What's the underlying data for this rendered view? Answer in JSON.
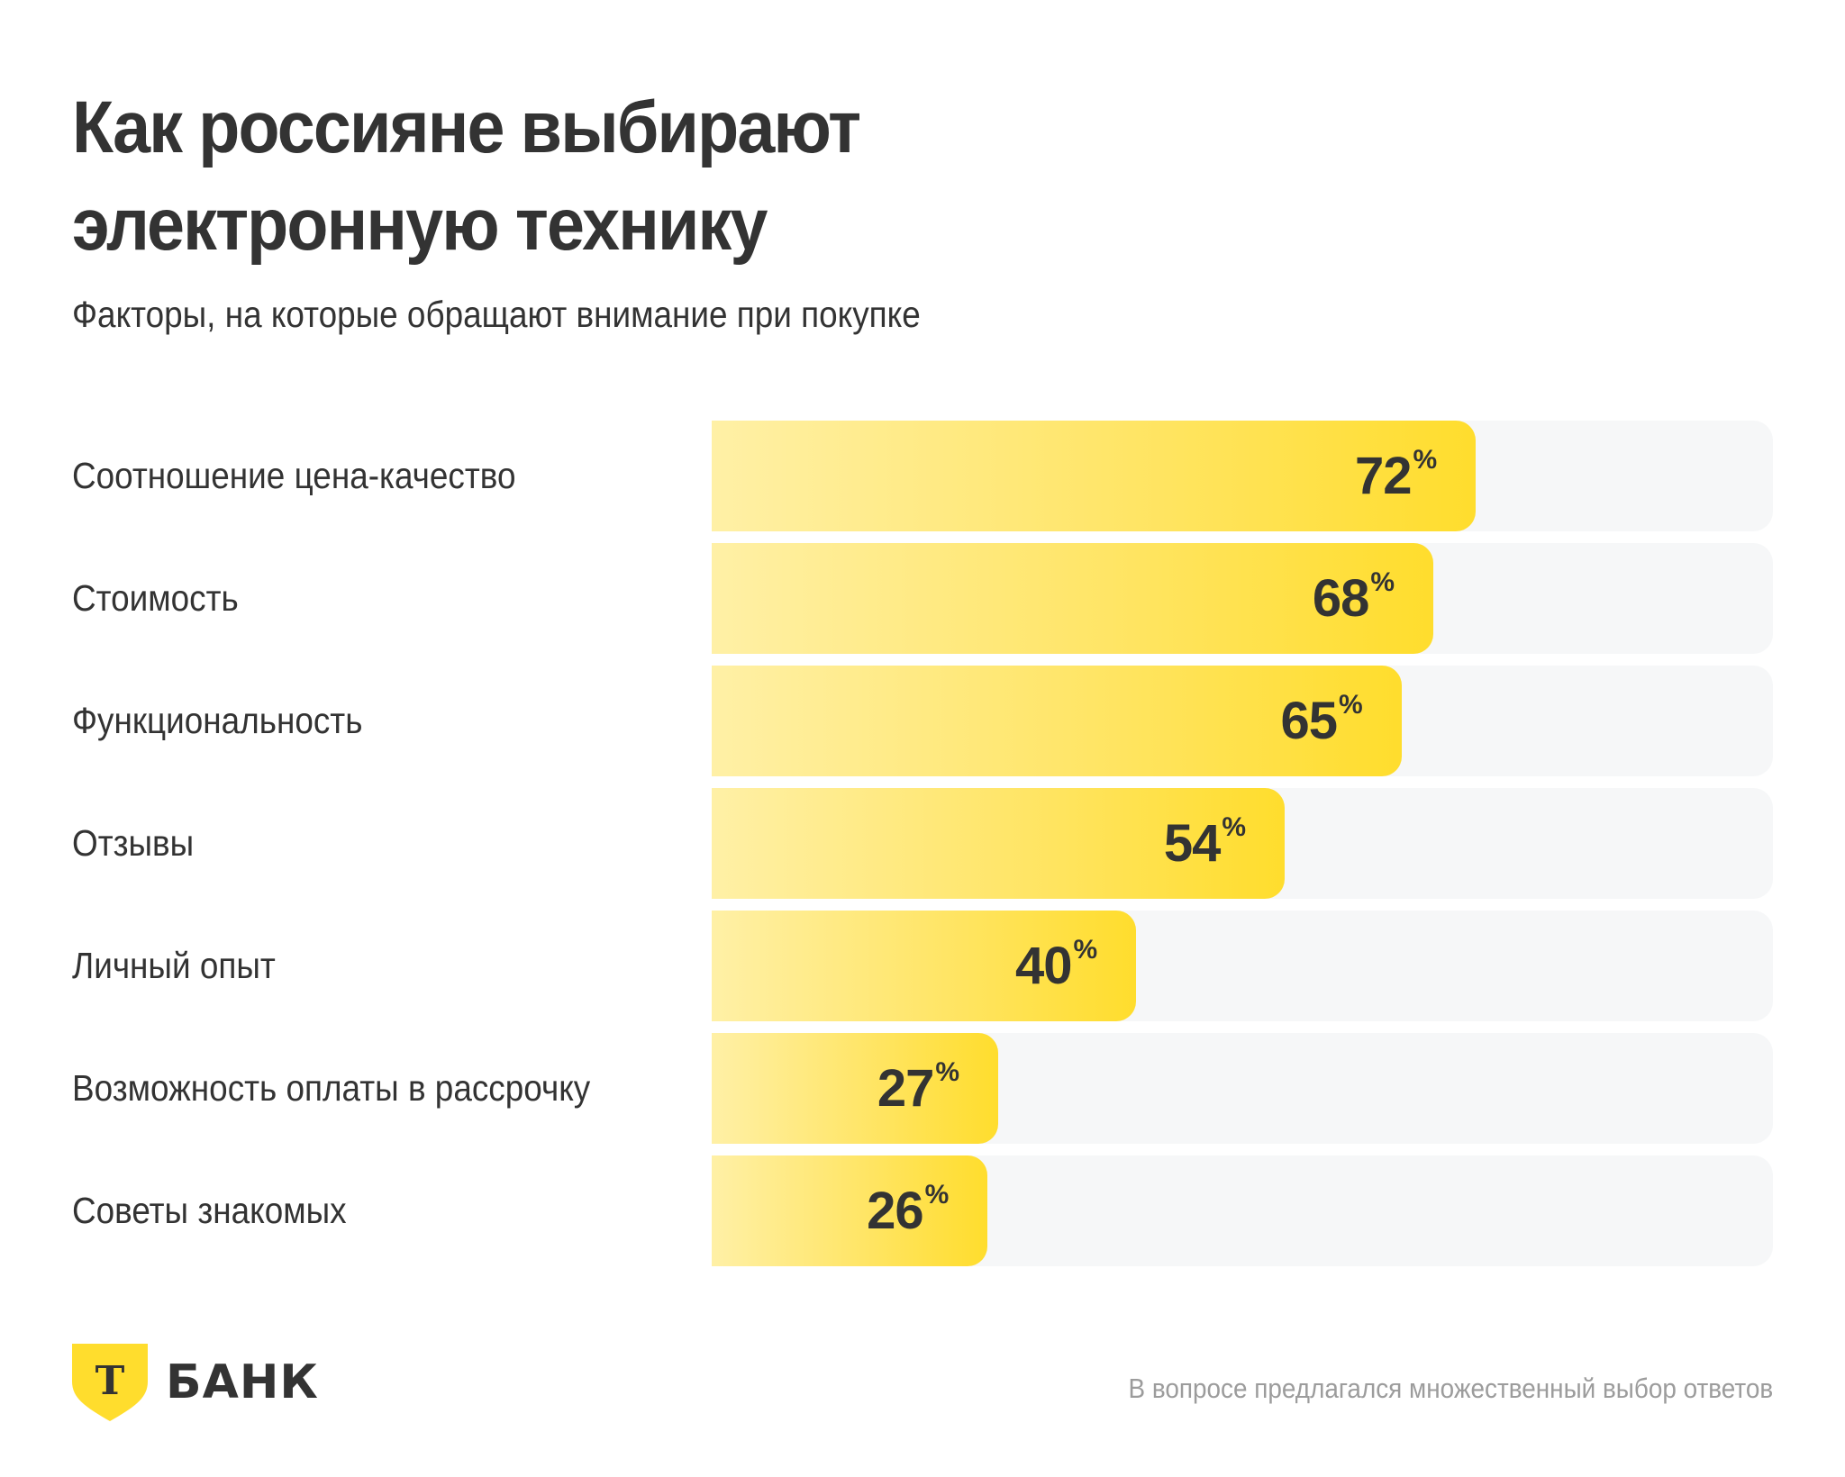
{
  "header": {
    "title_lines": [
      "Как россияне выбирают",
      "электронную технику"
    ],
    "subtitle": "Факторы, на которые обращают внимание при покупке"
  },
  "chart_data": {
    "type": "bar",
    "orientation": "horizontal",
    "title": "Как россияне выбирают электронную технику",
    "subtitle": "Факторы, на которые обращают внимание при покупке",
    "categories": [
      "Соотношение цена-качество",
      "Стоимость",
      "Функциональность",
      "Отзывы",
      "Личный опыт",
      "Возможность оплаты в рассрочку",
      "Советы знакомых"
    ],
    "values": [
      72,
      68,
      65,
      54,
      40,
      27,
      26
    ],
    "unit": "%",
    "xlim": [
      0,
      100
    ],
    "xlabel": "",
    "ylabel": "",
    "grid": false,
    "legend": "none",
    "colors": {
      "bar_start": "#FFF0A6",
      "bar_end": "#FFDD2D",
      "track": "#F6F7F8",
      "text": "#333333"
    }
  },
  "footer": {
    "brand_letter": "Т",
    "brand_name": "БАНК",
    "brand_color": "#FFDD2D",
    "note": "В вопросе предлагался множественный выбор ответов"
  }
}
